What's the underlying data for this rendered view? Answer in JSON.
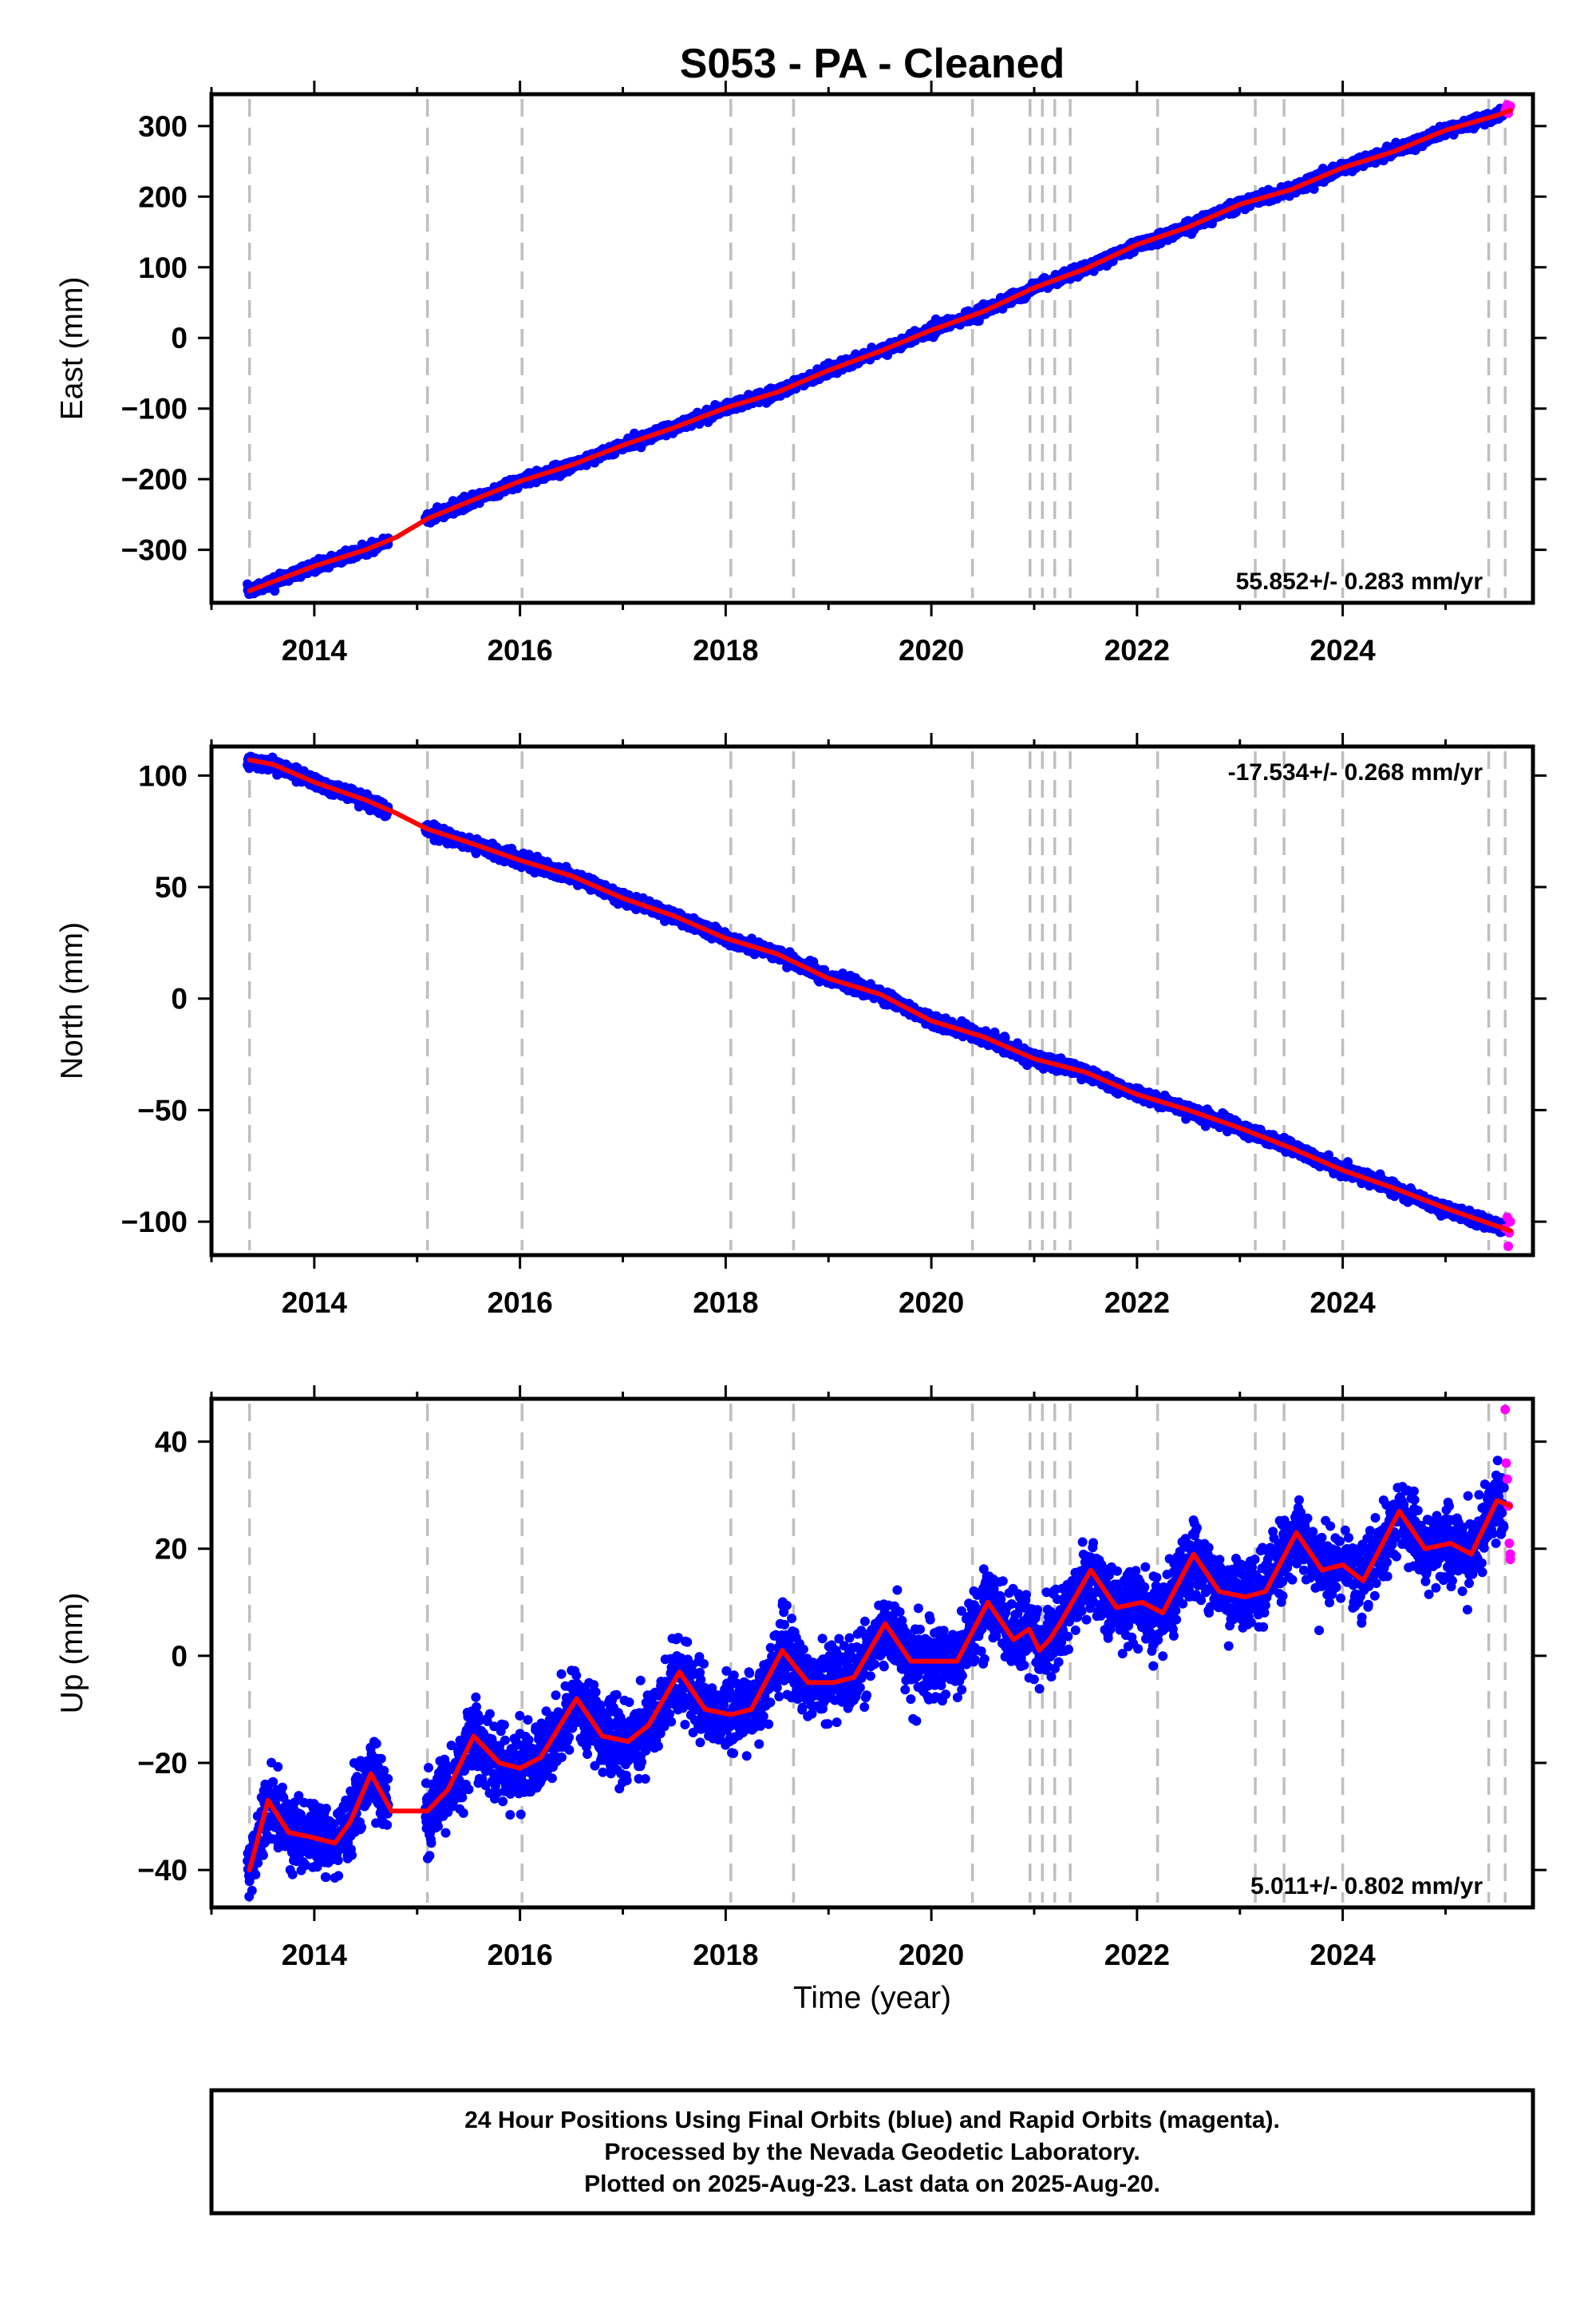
{
  "title": "S053  - PA - Cleaned",
  "colors": {
    "final_orbits": "#0000ff",
    "rapid_orbits": "#ff00ff",
    "model_fit": "#ff0000",
    "event_lines": "#bfbfbf",
    "frame": "#000000"
  },
  "footer": {
    "line1": "24 Hour Positions Using Final Orbits (blue) and Rapid Orbits (magenta).",
    "line2": "Processed by the Nevada Geodetic Laboratory.",
    "line3": "Plotted on 2025-Aug-23. Last data on 2025-Aug-20."
  },
  "chart_data": [
    {
      "type": "scatter",
      "component": "East",
      "ylabel": "East (mm)",
      "xlabel": "",
      "xlim": [
        2013.0,
        2025.85
      ],
      "ylim": [
        -375,
        345
      ],
      "xticks": [
        2014,
        2016,
        2018,
        2020,
        2022,
        2024
      ],
      "xtick_labels": [
        "2014",
        "2016",
        "2018",
        "2020",
        "2022",
        "2024"
      ],
      "yticks": [
        -300,
        -200,
        -100,
        0,
        100,
        200,
        300
      ],
      "ytick_labels": [
        "−300",
        "−200",
        "−100",
        "0",
        "100",
        "200",
        "300"
      ],
      "rate": "55.852+/- 0.283 mm/yr",
      "rate_position": "bottom-right",
      "grid": false,
      "model_fit": {
        "x": [
          2013.37,
          2013.6,
          2014.0,
          2014.5,
          2014.8,
          2015.1,
          2015.5,
          2016.0,
          2016.5,
          2017.0,
          2017.5,
          2018.0,
          2018.5,
          2019.0,
          2019.5,
          2020.0,
          2020.5,
          2021.0,
          2021.5,
          2022.0,
          2022.5,
          2023.0,
          2023.5,
          2024.0,
          2024.5,
          2025.0,
          2025.5,
          2025.63
        ],
        "y": [
          -358,
          -345,
          -323,
          -300,
          -282,
          -256,
          -232,
          -203,
          -180,
          -152,
          -127,
          -99,
          -77,
          -46,
          -19,
          11,
          37,
          71,
          98,
          132,
          157,
          189,
          210,
          241,
          264,
          294,
          315,
          322
        ]
      },
      "rapid_orbits": {
        "x": [
          2025.58,
          2025.59,
          2025.6,
          2025.61,
          2025.62,
          2025.63
        ],
        "y": [
          322,
          326,
          330,
          318,
          325,
          328
        ]
      },
      "noise_mm": 3.5,
      "seasonal_amplitude_mm": 2
    },
    {
      "type": "scatter",
      "component": "North",
      "ylabel": "North (mm)",
      "xlabel": "",
      "xlim": [
        2013.0,
        2025.85
      ],
      "ylim": [
        -115,
        113
      ],
      "xticks": [
        2014,
        2016,
        2018,
        2020,
        2022,
        2024
      ],
      "xtick_labels": [
        "2014",
        "2016",
        "2018",
        "2020",
        "2022",
        "2024"
      ],
      "yticks": [
        -100,
        -50,
        0,
        50,
        100
      ],
      "ytick_labels": [
        "−100",
        "−50",
        "0",
        "50",
        "100"
      ],
      "rate": "-17.534+/- 0.268 mm/yr",
      "rate_position": "top-right",
      "grid": false,
      "model_fit": {
        "x": [
          2013.37,
          2013.6,
          2014.0,
          2014.5,
          2014.8,
          2015.1,
          2015.5,
          2016.0,
          2016.5,
          2017.0,
          2017.5,
          2018.0,
          2018.5,
          2019.0,
          2019.5,
          2020.0,
          2020.5,
          2021.0,
          2021.5,
          2022.0,
          2022.5,
          2023.0,
          2023.5,
          2024.0,
          2024.5,
          2025.0,
          2025.5,
          2025.63
        ],
        "y": [
          107,
          105,
          97,
          89,
          83,
          76,
          70,
          62,
          55,
          45,
          37,
          27,
          20,
          9,
          2,
          -10,
          -17,
          -27,
          -33,
          -43,
          -50,
          -58,
          -67,
          -77,
          -85,
          -94,
          -102,
          -104
        ]
      },
      "rapid_orbits": {
        "x": [
          2025.58,
          2025.6,
          2025.61,
          2025.62,
          2025.63
        ],
        "y": [
          -103,
          -98,
          -111,
          -105,
          -100
        ]
      },
      "noise_mm": 1.3,
      "seasonal_amplitude_mm": 1.5
    },
    {
      "type": "scatter",
      "component": "Up",
      "ylabel": "Up (mm)",
      "xlabel": "Time (year)",
      "xlim": [
        2013.0,
        2025.85
      ],
      "ylim": [
        -47,
        48
      ],
      "xticks": [
        2014,
        2016,
        2018,
        2020,
        2022,
        2024
      ],
      "xtick_labels": [
        "2014",
        "2016",
        "2018",
        "2020",
        "2022",
        "2024"
      ],
      "yticks": [
        -40,
        -20,
        0,
        20,
        40
      ],
      "ytick_labels": [
        "−40",
        "−20",
        "0",
        "20",
        "40"
      ],
      "rate": "5.011+/- 0.802 mm/yr",
      "rate_position": "bottom-right",
      "grid": false,
      "model_fit": {
        "x": [
          2013.37,
          2013.55,
          2013.75,
          2014.0,
          2014.2,
          2014.35,
          2014.55,
          2014.75,
          2015.0,
          2015.1,
          2015.3,
          2015.55,
          2015.8,
          2016.0,
          2016.2,
          2016.55,
          2016.8,
          2017.05,
          2017.25,
          2017.55,
          2017.8,
          2018.05,
          2018.25,
          2018.55,
          2018.8,
          2019.05,
          2019.25,
          2019.55,
          2019.8,
          2020.05,
          2020.25,
          2020.55,
          2020.8,
          2020.95,
          2021.05,
          2021.15,
          2021.25,
          2021.55,
          2021.8,
          2022.05,
          2022.25,
          2022.55,
          2022.8,
          2023.05,
          2023.25,
          2023.55,
          2023.8,
          2024.0,
          2024.2,
          2024.55,
          2024.8,
          2025.05,
          2025.25,
          2025.5,
          2025.63
        ],
        "y": [
          -40,
          -27,
          -33,
          -34,
          -35,
          -31,
          -22,
          -29,
          -29,
          -29,
          -25,
          -15,
          -20,
          -21,
          -19,
          -8,
          -15,
          -16,
          -13,
          -3,
          -10,
          -11,
          -10,
          1,
          -5,
          -5,
          -4,
          6,
          -1,
          -1,
          -1,
          10,
          3,
          5,
          1,
          3,
          6,
          16,
          9,
          10,
          8,
          19,
          12,
          11,
          12,
          23,
          16,
          17,
          14,
          27,
          20,
          21,
          19,
          29,
          28
        ]
      },
      "rapid_orbits": {
        "x": [
          2025.58,
          2025.59,
          2025.6,
          2025.61,
          2025.62,
          2025.63,
          2025.63
        ],
        "y": [
          46,
          36,
          33,
          28,
          21,
          19,
          18
        ]
      },
      "noise_mm": 3.2,
      "seasonal_amplitude_mm": 4
    }
  ],
  "event_lines_x": [
    2013.37,
    2015.1,
    2016.02,
    2018.05,
    2018.66,
    2020.4,
    2020.96,
    2021.08,
    2021.2,
    2021.35,
    2022.2,
    2023.15,
    2023.43,
    2024.0,
    2025.42,
    2025.58
  ],
  "data_span": [
    2013.35,
    2025.63
  ],
  "data_gap": [
    2014.72,
    2015.08
  ]
}
